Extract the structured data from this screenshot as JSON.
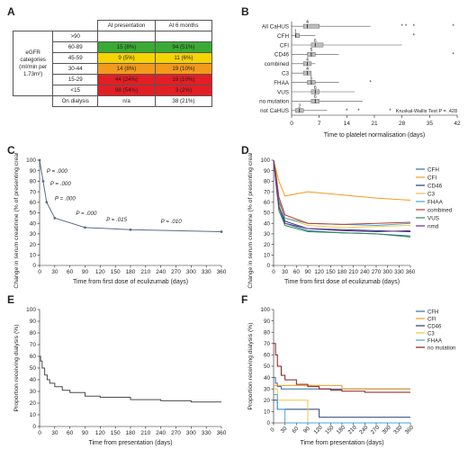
{
  "panel_labels": {
    "a": "A",
    "b": "B",
    "c": "C",
    "d": "D",
    "e": "E",
    "f": "F"
  },
  "table": {
    "row_header": "eGFR categories (ml/min per 1.73m²)",
    "col_headers": [
      "At presentation",
      "At 6 months"
    ],
    "rows": [
      {
        "category": ">90",
        "presentation": "",
        "six_months": ""
      },
      {
        "category": "60-89",
        "presentation": "15 (8%)",
        "six_months": "94 (51%)"
      },
      {
        "category": "45-59",
        "presentation": "9 (5%)",
        "six_months": "11 (6%)"
      },
      {
        "category": "30-44",
        "presentation": "14 (8%)",
        "six_months": "19 (10%)"
      },
      {
        "category": "15-29",
        "presentation": "44 (24%)",
        "six_months": "19 (10%)"
      },
      {
        "category": "<15",
        "presentation": "98 (54%)",
        "six_months": "3 (2%)"
      },
      {
        "category": "On dialysis",
        "presentation": "n/a",
        "six_months": "38 (21%)"
      }
    ],
    "colors": {
      "green": "#3aaa35",
      "yellow": "#f5d400",
      "orange": "#f39a1c",
      "red": "#e31e24"
    }
  },
  "chart_data": [
    {
      "panel": "B",
      "type": "boxplot",
      "categories": [
        "All CaHUS",
        "CFH",
        "CFI",
        "CD46",
        "combined",
        "C3",
        "FHAA",
        "VUS",
        "no mutation",
        "not CaHUS"
      ],
      "medians": [
        4,
        1,
        6,
        5,
        4,
        4,
        5,
        6,
        6,
        2
      ],
      "boxes": [
        [
          3,
          7
        ],
        [
          1,
          2
        ],
        [
          5,
          8
        ],
        [
          4,
          6
        ],
        [
          3,
          5
        ],
        [
          3,
          5
        ],
        [
          4,
          6
        ],
        [
          5,
          7
        ],
        [
          5,
          7
        ],
        [
          1,
          3
        ]
      ],
      "whiskers": [
        [
          0,
          20
        ],
        [
          0,
          6
        ],
        [
          0,
          28
        ],
        [
          0,
          12
        ],
        [
          0,
          6
        ],
        [
          0,
          5
        ],
        [
          0,
          12
        ],
        [
          0,
          16
        ],
        [
          0,
          18
        ],
        [
          0,
          9
        ]
      ],
      "outliers": [
        [
          28,
          29,
          31,
          41
        ],
        [
          31
        ],
        [],
        [
          41
        ],
        [],
        [],
        [
          20
        ],
        [],
        [],
        [
          14,
          17,
          25
        ]
      ],
      "xticks": [
        0,
        7,
        14,
        21,
        28,
        35,
        42
      ],
      "xlim": [
        0,
        42
      ],
      "xlabel": "Time to platelet normalisation (days)",
      "annotation": "Kruskal-Wallis Test P = .428"
    },
    {
      "panel": "C",
      "type": "line",
      "x": [
        0,
        7,
        14,
        30,
        90,
        180,
        360
      ],
      "y": [
        100,
        80,
        60,
        45,
        36,
        34,
        32
      ],
      "p_labels": [
        {
          "x": 14,
          "y": 88,
          "text": "P = .000"
        },
        {
          "x": 21,
          "y": 76,
          "text": "P = .000"
        },
        {
          "x": 30,
          "y": 62,
          "text": "P = .000"
        },
        {
          "x": 72,
          "y": 48,
          "text": "P = .000"
        },
        {
          "x": 132,
          "y": 42,
          "text": "P = .015"
        },
        {
          "x": 240,
          "y": 40,
          "text": "P = .010"
        }
      ],
      "xticks": [
        0,
        30,
        60,
        90,
        120,
        150,
        180,
        210,
        240,
        270,
        300,
        330,
        360
      ],
      "yticks": [
        0,
        10,
        20,
        30,
        40,
        50,
        60,
        70,
        80,
        90,
        100
      ],
      "xlim": [
        0,
        360
      ],
      "ylim": [
        0,
        100
      ],
      "xlabel": "Time from first dose of eculizumab (days)",
      "ylabel": "Change in serum creatinine (% of presenting creatinine)"
    },
    {
      "panel": "D",
      "type": "line",
      "x": [
        0,
        7,
        14,
        30,
        90,
        180,
        270,
        360
      ],
      "series": [
        {
          "name": "CFH",
          "color": "#2e6fa7",
          "values": [
            100,
            75,
            55,
            40,
            33,
            31,
            30,
            28
          ]
        },
        {
          "name": "CFI",
          "color": "#f39a1c",
          "values": [
            100,
            90,
            80,
            66,
            70,
            67,
            64,
            62
          ]
        },
        {
          "name": "CD46",
          "color": "#1f3f6e",
          "values": [
            100,
            80,
            60,
            42,
            35,
            34,
            33,
            32
          ]
        },
        {
          "name": "C3",
          "color": "#f4c542",
          "values": [
            100,
            78,
            58,
            45,
            38,
            36,
            37,
            38
          ]
        },
        {
          "name": "FHAA",
          "color": "#41a7d8",
          "values": [
            100,
            82,
            62,
            45,
            40,
            39,
            38,
            40
          ]
        },
        {
          "name": "combined",
          "color": "#c0392b",
          "values": [
            100,
            85,
            65,
            48,
            40,
            39,
            40,
            41
          ]
        },
        {
          "name": "VUS",
          "color": "#2e8b57",
          "values": [
            100,
            75,
            52,
            38,
            32,
            31,
            30,
            27
          ]
        },
        {
          "name": "nmd",
          "color": "#6a2c91",
          "values": [
            100,
            78,
            56,
            40,
            35,
            33,
            32,
            33
          ]
        }
      ],
      "xticks": [
        0,
        30,
        60,
        90,
        120,
        150,
        180,
        210,
        240,
        270,
        300,
        330,
        360
      ],
      "yticks": [
        0,
        10,
        20,
        30,
        40,
        50,
        60,
        70,
        80,
        90,
        100
      ],
      "xlim": [
        0,
        360
      ],
      "ylim": [
        0,
        100
      ],
      "xlabel": "Time from first dose of eculizumab (days)",
      "ylabel": "Change in serum creatinine (% of presenting creatinine)"
    },
    {
      "panel": "E",
      "type": "line",
      "x": [
        0,
        2,
        5,
        10,
        15,
        20,
        30,
        45,
        60,
        90,
        120,
        180,
        240,
        300,
        360
      ],
      "y": [
        60,
        56,
        50,
        44,
        40,
        37,
        34,
        31,
        29,
        26,
        25,
        23,
        22,
        21,
        21
      ],
      "xticks": [
        0,
        30,
        60,
        90,
        120,
        150,
        180,
        210,
        240,
        270,
        300,
        330,
        360
      ],
      "yticks": [
        0,
        10,
        20,
        30,
        40,
        50,
        60,
        70,
        80,
        90,
        100
      ],
      "xlim": [
        0,
        360
      ],
      "ylim": [
        0,
        100
      ],
      "xlabel": "Time from presentation (days)",
      "ylabel": "Proportion receiving dialysis (%)"
    },
    {
      "panel": "F",
      "type": "line",
      "x": [
        0,
        5,
        10,
        20,
        30,
        60,
        90,
        120,
        150,
        180,
        240,
        300,
        360
      ],
      "series": [
        {
          "name": "CFH",
          "color": "#2e6fa7",
          "values": [
            40,
            35,
            32,
            30,
            30,
            30,
            30,
            30,
            30,
            30,
            30,
            30,
            30
          ]
        },
        {
          "name": "CFI",
          "color": "#f39a1c",
          "values": [
            33,
            33,
            33,
            33,
            33,
            33,
            33,
            33,
            33,
            30,
            30,
            30,
            30
          ]
        },
        {
          "name": "CD46",
          "color": "#1f3f6e",
          "values": [
            20,
            20,
            12,
            12,
            12,
            12,
            12,
            5,
            5,
            5,
            5,
            5,
            5
          ]
        },
        {
          "name": "C3",
          "color": "#f4c542",
          "values": [
            30,
            30,
            20,
            20,
            20,
            20,
            0,
            0,
            0,
            0,
            0,
            0,
            0
          ]
        },
        {
          "name": "FHAA",
          "color": "#41a7d8",
          "values": [
            25,
            25,
            12,
            12,
            0,
            0,
            0,
            0,
            0,
            0,
            0,
            0,
            0
          ]
        },
        {
          "name": "no mutation",
          "color": "#8b1a1a",
          "values": [
            70,
            60,
            50,
            42,
            38,
            34,
            32,
            30,
            29,
            28,
            27,
            27,
            27
          ]
        }
      ],
      "xticks": [
        0,
        30,
        60,
        90,
        120,
        150,
        180,
        210,
        240,
        270,
        300,
        330,
        360
      ],
      "yticks": [
        0,
        10,
        20,
        30,
        40,
        50,
        60,
        70,
        80,
        90,
        100
      ],
      "xlim": [
        0,
        360
      ],
      "ylim": [
        0,
        100
      ],
      "xlabel": "Time from presentation (days)",
      "ylabel": "Proportion receiving dialysis (%)"
    }
  ]
}
